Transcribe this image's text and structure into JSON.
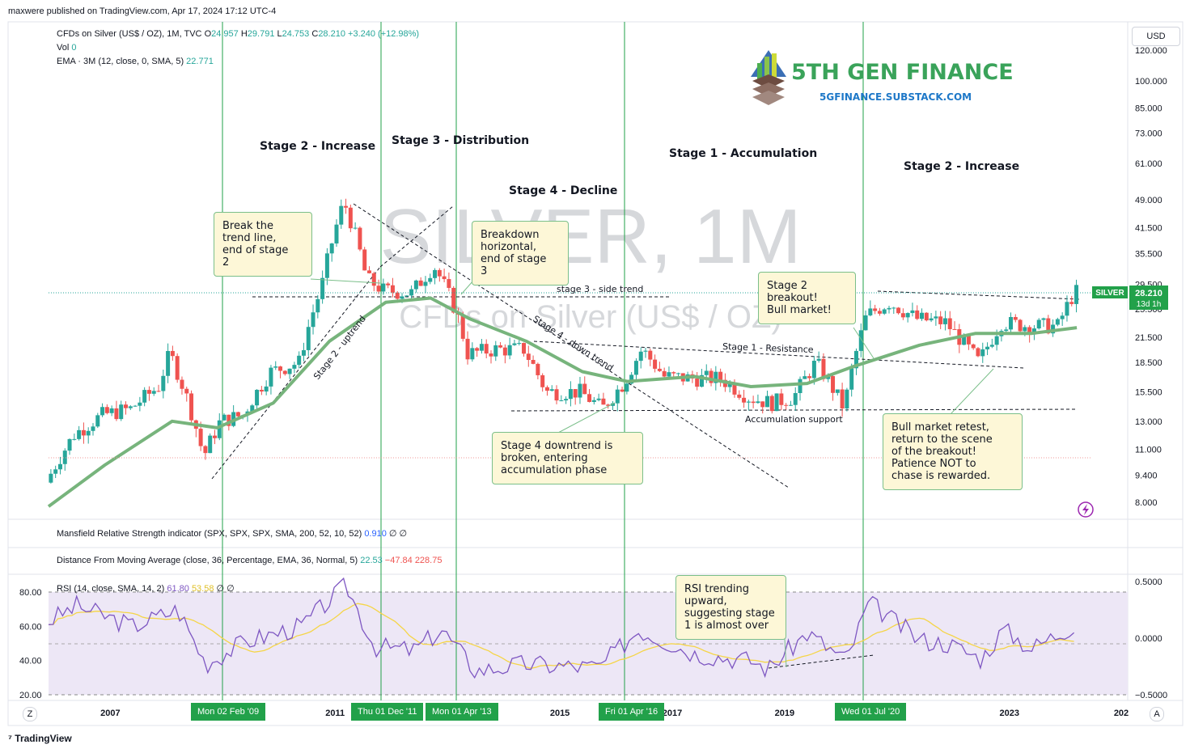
{
  "header": {
    "published": "maxwere published on TradingView.com, Apr 17, 2024 17:12 UTC-4",
    "symbol": "CFDs on Silver (US$ / OZ), 1M, TVC",
    "ohlc": {
      "o_label": "O",
      "o": "24.957",
      "h_label": "H",
      "h": "29.791",
      "l_label": "L",
      "l": "24.753",
      "c_label": "C",
      "c": "28.210",
      "change": "+3.240 (+12.98%)"
    },
    "vol_label": "Vol",
    "vol_value": "0",
    "ema_label": "EMA · 3M (12, close, 0, SMA, 5)",
    "ema_value": "22.771"
  },
  "currency_button": "USD",
  "watermark": {
    "big": "SILVER, 1M",
    "sub": "CFDs on Silver (US$ / OZ)"
  },
  "logo": {
    "name": "5TH GEN FINANCE",
    "url": "5GFINANCE.SUBSTACK.COM"
  },
  "price_label": {
    "symbol": "SILVER",
    "price": "28.210",
    "countdown": "13d 1h"
  },
  "colors": {
    "up": "#26a69a",
    "down": "#ef5350",
    "ema": "#77b47c",
    "rsi": "#7e57c2",
    "rsi_ma": "#f5d547",
    "vline": "#22a14a",
    "tag": "#22a14a",
    "accent": "#22a14a"
  },
  "stages": [
    {
      "text": "Stage 2 - Increase"
    },
    {
      "text": "Stage 3 - Distribution"
    },
    {
      "text": "Stage 4 - Decline"
    },
    {
      "text": "Stage 1 - Accumulation"
    },
    {
      "text": "Stage 2 - Increase"
    }
  ],
  "callouts": [
    {
      "text": "Break the\ntrend line,\nend of stage\n2"
    },
    {
      "text": "Breakdown\nhorizontal,\nend of stage\n3"
    },
    {
      "text": "Stage 4 downtrend is\nbroken, entering\naccumulation phase"
    },
    {
      "text": "Stage 2\nbreakout!\nBull market!"
    },
    {
      "text": "Bull market retest,\nreturn to the scene\nof the breakout!\nPatience NOT to\nchase is rewarded."
    },
    {
      "text": "RSI trending\nupward,\nsuggesting stage\n1 is almost over"
    }
  ],
  "line_labels": {
    "side": "stage 3 - side trend",
    "uptrend": "Stage 2 - uptrend",
    "downtrend": "Stage 4 - down trend",
    "resistance": "Stage 1 - Resistance",
    "support": "Accumulation support"
  },
  "indicators": {
    "mansfield": {
      "label": "Mansfield Relative Strength indicator (SPX, SPX, SPX, SMA, 200, 52, 10, 52)",
      "value": "0.910",
      "extra": "∅ ∅"
    },
    "distance": {
      "label": "Distance From Moving Average (close, 36, Percentage, EMA, 36, Normal, 5)",
      "v1": "22.53",
      "v2": "−47.84",
      "v3": "228.75"
    },
    "rsi": {
      "label": "RSI (14, close, SMA, 14, 2)",
      "v1": "61.80",
      "v2": "53.58",
      "extra": "∅ ∅"
    }
  },
  "date_tags": [
    "Mon 02 Feb '09",
    "Thu 01 Dec '11",
    "Mon 01 Apr '13",
    "Fri 01 Apr '16",
    "Wed 01 Jul '20"
  ],
  "footer": {
    "brand": "TradingView",
    "z_btn": "Z",
    "a_btn": "A"
  },
  "chart_data": {
    "type": "candlestick",
    "symbol": "SILVER",
    "timeframe": "1M",
    "y_scale": "log",
    "price_axis_ticks": [
      "120.000",
      "100.000",
      "85.000",
      "73.000",
      "61.000",
      "49.000",
      "41.500",
      "35.500",
      "29.500",
      "25.500",
      "21.500",
      "18.500",
      "15.500",
      "13.000",
      "11.000",
      "9.400",
      "8.000"
    ],
    "x_axis_ticks": [
      "2007",
      "2011",
      "2015",
      "2017",
      "2019",
      "2023",
      "202"
    ],
    "rsi_axis_ticks": [
      "80.00",
      "60.00",
      "40.00",
      "20.00"
    ],
    "mrs_axis_ticks": [
      "0.5000",
      "0.0000",
      "−0.5000"
    ],
    "price_path_yearly": [
      {
        "x": 2006.0,
        "y": 9.0
      },
      {
        "x": 2006.5,
        "y": 12.0
      },
      {
        "x": 2007.0,
        "y": 13.5
      },
      {
        "x": 2007.5,
        "y": 14.0
      },
      {
        "x": 2008.0,
        "y": 16.0
      },
      {
        "x": 2008.2,
        "y": 19.5
      },
      {
        "x": 2008.8,
        "y": 10.5
      },
      {
        "x": 2009.1,
        "y": 13.0
      },
      {
        "x": 2009.5,
        "y": 13.5
      },
      {
        "x": 2010.0,
        "y": 17.5
      },
      {
        "x": 2010.5,
        "y": 18.5
      },
      {
        "x": 2010.9,
        "y": 29.0
      },
      {
        "x": 2011.3,
        "y": 48.5
      },
      {
        "x": 2011.7,
        "y": 30.5
      },
      {
        "x": 2012.0,
        "y": 28.5
      },
      {
        "x": 2012.5,
        "y": 28.0
      },
      {
        "x": 2012.9,
        "y": 33.0
      },
      {
        "x": 2013.3,
        "y": 25.0
      },
      {
        "x": 2013.5,
        "y": 19.5
      },
      {
        "x": 2014.0,
        "y": 20.0
      },
      {
        "x": 2014.5,
        "y": 20.0
      },
      {
        "x": 2014.9,
        "y": 15.5
      },
      {
        "x": 2015.5,
        "y": 15.5
      },
      {
        "x": 2015.9,
        "y": 14.0
      },
      {
        "x": 2016.3,
        "y": 16.5
      },
      {
        "x": 2016.6,
        "y": 20.0
      },
      {
        "x": 2017.0,
        "y": 17.0
      },
      {
        "x": 2017.5,
        "y": 16.8
      },
      {
        "x": 2018.0,
        "y": 16.8
      },
      {
        "x": 2018.5,
        "y": 15.0
      },
      {
        "x": 2018.9,
        "y": 14.5
      },
      {
        "x": 2019.3,
        "y": 15.0
      },
      {
        "x": 2019.7,
        "y": 18.5
      },
      {
        "x": 2020.2,
        "y": 14.0
      },
      {
        "x": 2020.6,
        "y": 24.5
      },
      {
        "x": 2021.0,
        "y": 26.5
      },
      {
        "x": 2021.5,
        "y": 24.0
      },
      {
        "x": 2022.0,
        "y": 23.5
      },
      {
        "x": 2022.6,
        "y": 18.5
      },
      {
        "x": 2023.0,
        "y": 23.5
      },
      {
        "x": 2023.5,
        "y": 23.0
      },
      {
        "x": 2024.0,
        "y": 23.0
      },
      {
        "x": 2024.3,
        "y": 28.2
      }
    ],
    "ema_path_yearly": [
      {
        "x": 2006.0,
        "y": 7.8
      },
      {
        "x": 2007.0,
        "y": 10.0
      },
      {
        "x": 2008.2,
        "y": 13.0
      },
      {
        "x": 2009.0,
        "y": 12.5
      },
      {
        "x": 2010.0,
        "y": 14.5
      },
      {
        "x": 2011.0,
        "y": 21.0
      },
      {
        "x": 2012.0,
        "y": 26.5
      },
      {
        "x": 2012.8,
        "y": 27.2
      },
      {
        "x": 2013.5,
        "y": 24.0
      },
      {
        "x": 2014.5,
        "y": 21.0
      },
      {
        "x": 2015.5,
        "y": 17.5
      },
      {
        "x": 2016.3,
        "y": 16.5
      },
      {
        "x": 2017.5,
        "y": 17.0
      },
      {
        "x": 2018.5,
        "y": 16.0
      },
      {
        "x": 2019.5,
        "y": 16.3
      },
      {
        "x": 2020.3,
        "y": 18.0
      },
      {
        "x": 2021.5,
        "y": 20.5
      },
      {
        "x": 2022.5,
        "y": 22.0
      },
      {
        "x": 2023.5,
        "y": 22.0
      },
      {
        "x": 2024.3,
        "y": 22.771
      }
    ],
    "rsi_path_yearly": [
      {
        "x": 2006.0,
        "y": 63
      },
      {
        "x": 2006.5,
        "y": 72
      },
      {
        "x": 2007.5,
        "y": 60
      },
      {
        "x": 2008.3,
        "y": 70
      },
      {
        "x": 2008.8,
        "y": 38
      },
      {
        "x": 2009.5,
        "y": 51
      },
      {
        "x": 2010.5,
        "y": 60
      },
      {
        "x": 2011.3,
        "y": 84
      },
      {
        "x": 2011.8,
        "y": 48
      },
      {
        "x": 2012.5,
        "y": 46
      },
      {
        "x": 2013.0,
        "y": 58
      },
      {
        "x": 2013.6,
        "y": 34
      },
      {
        "x": 2014.5,
        "y": 38
      },
      {
        "x": 2015.0,
        "y": 37
      },
      {
        "x": 2015.8,
        "y": 36
      },
      {
        "x": 2016.5,
        "y": 58
      },
      {
        "x": 2017.5,
        "y": 44
      },
      {
        "x": 2018.5,
        "y": 40
      },
      {
        "x": 2018.8,
        "y": 35
      },
      {
        "x": 2019.5,
        "y": 56
      },
      {
        "x": 2020.2,
        "y": 40
      },
      {
        "x": 2020.6,
        "y": 74
      },
      {
        "x": 2021.5,
        "y": 52
      },
      {
        "x": 2022.0,
        "y": 50
      },
      {
        "x": 2022.6,
        "y": 41
      },
      {
        "x": 2023.0,
        "y": 58
      },
      {
        "x": 2023.5,
        "y": 47
      },
      {
        "x": 2024.3,
        "y": 61.8
      }
    ]
  }
}
